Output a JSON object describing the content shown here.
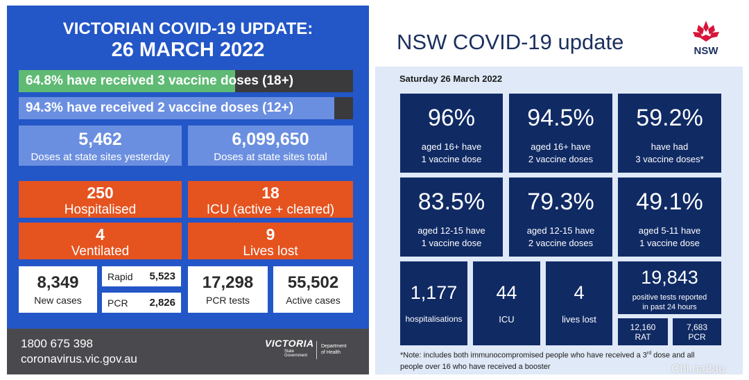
{
  "vic": {
    "title_line1": "VICTORIAN COVID-19 UPDATE:",
    "title_line2": "26 MARCH 2022",
    "vaccine_bars": [
      {
        "label": "64.8% have received 3 vaccine doses (18+)",
        "percent": 64.8,
        "color": "#5fba74"
      },
      {
        "label": "94.3% have received 2 vaccine doses (12+)",
        "percent": 94.3,
        "color": "#6b8fe0"
      }
    ],
    "doses": [
      {
        "value": "5,462",
        "label": "Doses at state sites yesterday"
      },
      {
        "value": "6,099,650",
        "label": "Doses at state sites total"
      }
    ],
    "hospital": [
      {
        "value": "250",
        "label": "Hospitalised"
      },
      {
        "value": "18",
        "label": "ICU (active + cleared)"
      },
      {
        "value": "4",
        "label": "Ventilated"
      },
      {
        "value": "9",
        "label": "Lives lost"
      }
    ],
    "cases": {
      "new_value": "8,349",
      "new_label": "New cases",
      "rapid_label": "Rapid",
      "rapid_value": "5,523",
      "pcr_label": "PCR",
      "pcr_value": "2,826",
      "pcr_tests_value": "17,298",
      "pcr_tests_label": "PCR tests",
      "active_value": "55,502",
      "active_label": "Active cases"
    },
    "footer": {
      "phone": "1800 675 398",
      "website": "coronavirus.vic.gov.au",
      "logo_text": "VICTORIA",
      "logo_sub": "State Government",
      "dept_line1": "Department",
      "dept_line2": "of Health"
    }
  },
  "nsw": {
    "title": "NSW COVID-19 update",
    "logo_text": "NSW",
    "date": "Saturday 26 March 2022",
    "vaccine_tiles": [
      {
        "value": "96%",
        "line1": "aged 16+ have",
        "line2": "1 vaccine dose"
      },
      {
        "value": "94.5%",
        "line1": "aged 16+ have",
        "line2": "2 vaccine doses"
      },
      {
        "value": "59.2%",
        "line1": "have had",
        "line2": "3 vaccine doses*"
      },
      {
        "value": "83.5%",
        "line1": "aged 12-15 have",
        "line2": "1 vaccine dose"
      },
      {
        "value": "79.3%",
        "line1": "aged 12-15 have",
        "line2": "2 vaccine doses"
      },
      {
        "value": "49.1%",
        "line1": "aged 5-11 have",
        "line2": "1 vaccine dose"
      }
    ],
    "hosp": {
      "value": "1,177",
      "label": "hospitalisations"
    },
    "icu": {
      "value": "44",
      "label": "ICU"
    },
    "lives": {
      "value": "4",
      "label": "lives lost"
    },
    "tests": {
      "value": "19,843",
      "line1": "positive tests reported",
      "line2": "in past 24 hours"
    },
    "rat": {
      "value": "12,160",
      "label": "RAT"
    },
    "pcr": {
      "value": "7,683",
      "label": "PCR"
    },
    "note_line1_pre": "*Note: includes both immunocompromised people who have received a 3",
    "note_sup": "rd",
    "note_line1_post": " dose and all",
    "note_line2": "people over 16 who have received a booster"
  },
  "watermark": "Chi.na2au",
  "colors": {
    "vic_blue": "#2356c7",
    "vic_orange": "#e5531f",
    "vic_green": "#5fba74",
    "nsw_navy": "#102a64",
    "nsw_bg": "#dfe9f7",
    "nsw_red": "#d7153a"
  }
}
